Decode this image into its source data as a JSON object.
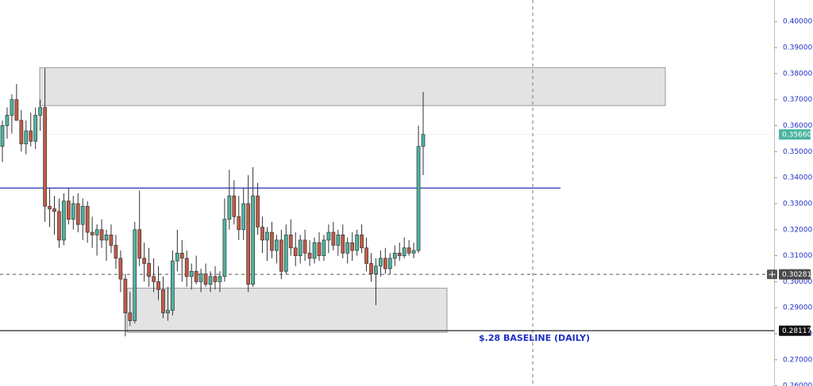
{
  "chart_data": {
    "type": "candlestick",
    "annotation": "$.28 BASELINE (DAILY)",
    "up_color": "#4cb5a0",
    "down_color": "#c45a45",
    "ylim": [
      0.2599,
      0.4083
    ],
    "yticks": [
      {
        "value": 0.26,
        "label": "0.26000"
      },
      {
        "value": 0.27,
        "label": "0.27000"
      },
      {
        "value": 0.28,
        "label": "0.28000"
      },
      {
        "value": 0.29,
        "label": "0.29000"
      },
      {
        "value": 0.3,
        "label": "0.30000"
      },
      {
        "value": 0.31,
        "label": "0.31000"
      },
      {
        "value": 0.32,
        "label": "0.32000"
      },
      {
        "value": 0.33,
        "label": "0.33000"
      },
      {
        "value": 0.34,
        "label": "0.34000"
      },
      {
        "value": 0.35,
        "label": "0.35000"
      },
      {
        "value": 0.36,
        "label": "0.36000"
      },
      {
        "value": 0.37,
        "label": "0.37000"
      },
      {
        "value": 0.38,
        "label": "0.38000"
      },
      {
        "value": 0.39,
        "label": "0.39000"
      },
      {
        "value": 0.4,
        "label": "0.40000"
      }
    ],
    "zones": [
      {
        "from": 0.3677,
        "to": 0.3823
      },
      {
        "from": 0.2805,
        "to": 0.2975
      }
    ],
    "lines": [
      {
        "value": 0.336,
        "color": "#2233bb"
      }
    ],
    "price_tags": [
      {
        "value": 0.3566,
        "label": "0.35660",
        "color": "#4cb5a0"
      },
      {
        "value": 0.30281,
        "label": "0.30281",
        "color": "#4a4a4a"
      },
      {
        "value": 0.28117,
        "label": "0.28117",
        "color": "#111111"
      }
    ],
    "open": [
      0.352,
      0.36,
      0.364,
      0.37,
      0.362,
      0.353,
      0.358,
      0.354,
      0.364,
      0.367,
      0.329,
      0.328,
      0.327,
      0.316,
      0.331,
      0.324,
      0.33,
      0.322,
      0.329,
      0.319,
      0.318,
      0.32,
      0.316,
      0.318,
      0.314,
      0.309,
      0.301,
      0.288,
      0.285,
      0.32,
      0.309,
      0.307,
      0.302,
      0.3,
      0.297,
      0.288,
      0.289,
      0.308,
      0.311,
      0.309,
      0.302,
      0.304,
      0.3,
      0.303,
      0.299,
      0.302,
      0.3,
      0.302,
      0.324,
      0.333,
      0.325,
      0.32,
      0.33,
      0.299,
      0.333,
      0.321,
      0.316,
      0.319,
      0.312,
      0.316,
      0.304,
      0.318,
      0.313,
      0.31,
      0.316,
      0.311,
      0.309,
      0.315,
      0.31,
      0.316,
      0.319,
      0.314,
      0.318,
      0.311,
      0.315,
      0.312,
      0.318,
      0.313,
      0.307,
      0.303,
      0.306,
      0.309,
      0.305,
      0.309,
      0.311,
      0.31,
      0.313,
      0.311,
      0.312,
      0.352
    ],
    "high": [
      0.362,
      0.367,
      0.372,
      0.376,
      0.366,
      0.362,
      0.365,
      0.367,
      0.37,
      0.382,
      0.336,
      0.333,
      0.332,
      0.334,
      0.336,
      0.333,
      0.334,
      0.332,
      0.331,
      0.325,
      0.322,
      0.324,
      0.32,
      0.322,
      0.318,
      0.312,
      0.303,
      0.296,
      0.323,
      0.335,
      0.315,
      0.313,
      0.309,
      0.306,
      0.302,
      0.298,
      0.312,
      0.32,
      0.316,
      0.312,
      0.307,
      0.31,
      0.305,
      0.307,
      0.304,
      0.306,
      0.304,
      0.332,
      0.343,
      0.339,
      0.333,
      0.336,
      0.341,
      0.344,
      0.338,
      0.325,
      0.321,
      0.323,
      0.318,
      0.32,
      0.322,
      0.324,
      0.319,
      0.318,
      0.32,
      0.316,
      0.317,
      0.319,
      0.318,
      0.322,
      0.323,
      0.32,
      0.322,
      0.317,
      0.319,
      0.32,
      0.322,
      0.317,
      0.311,
      0.309,
      0.312,
      0.313,
      0.311,
      0.314,
      0.315,
      0.317,
      0.316,
      0.315,
      0.36,
      0.373
    ],
    "low": [
      0.346,
      0.355,
      0.357,
      0.363,
      0.35,
      0.349,
      0.352,
      0.351,
      0.358,
      0.323,
      0.321,
      0.318,
      0.313,
      0.314,
      0.322,
      0.32,
      0.319,
      0.316,
      0.315,
      0.313,
      0.31,
      0.313,
      0.308,
      0.311,
      0.305,
      0.296,
      0.279,
      0.283,
      0.284,
      0.306,
      0.3,
      0.298,
      0.296,
      0.293,
      0.286,
      0.285,
      0.287,
      0.304,
      0.3,
      0.298,
      0.297,
      0.299,
      0.296,
      0.298,
      0.296,
      0.297,
      0.296,
      0.3,
      0.32,
      0.322,
      0.316,
      0.316,
      0.296,
      0.298,
      0.318,
      0.311,
      0.308,
      0.309,
      0.307,
      0.301,
      0.303,
      0.31,
      0.306,
      0.307,
      0.308,
      0.306,
      0.307,
      0.308,
      0.308,
      0.311,
      0.312,
      0.31,
      0.309,
      0.307,
      0.308,
      0.31,
      0.311,
      0.304,
      0.3,
      0.291,
      0.302,
      0.303,
      0.303,
      0.306,
      0.308,
      0.309,
      0.31,
      0.309,
      0.311,
      0.341
    ],
    "close": [
      0.36,
      0.364,
      0.37,
      0.362,
      0.353,
      0.358,
      0.354,
      0.364,
      0.367,
      0.329,
      0.328,
      0.327,
      0.316,
      0.331,
      0.324,
      0.33,
      0.322,
      0.329,
      0.319,
      0.318,
      0.32,
      0.316,
      0.318,
      0.314,
      0.309,
      0.301,
      0.288,
      0.285,
      0.32,
      0.309,
      0.307,
      0.302,
      0.3,
      0.297,
      0.288,
      0.289,
      0.308,
      0.311,
      0.309,
      0.302,
      0.304,
      0.3,
      0.303,
      0.299,
      0.302,
      0.3,
      0.302,
      0.324,
      0.333,
      0.325,
      0.32,
      0.33,
      0.299,
      0.333,
      0.321,
      0.316,
      0.319,
      0.312,
      0.316,
      0.304,
      0.318,
      0.313,
      0.31,
      0.316,
      0.311,
      0.309,
      0.315,
      0.31,
      0.316,
      0.319,
      0.314,
      0.318,
      0.311,
      0.315,
      0.312,
      0.318,
      0.313,
      0.307,
      0.303,
      0.306,
      0.309,
      0.305,
      0.309,
      0.311,
      0.31,
      0.313,
      0.311,
      0.312,
      0.352,
      0.3566
    ]
  }
}
